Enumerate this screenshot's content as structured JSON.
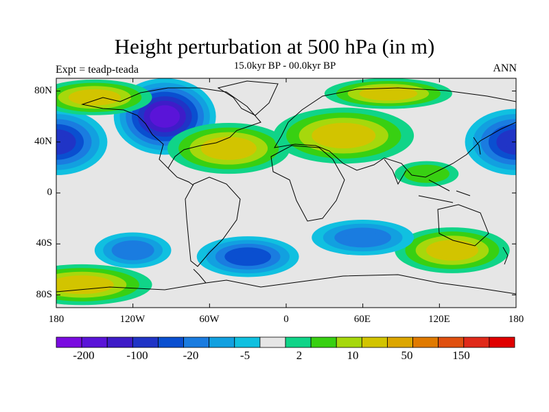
{
  "title": "Height perturbation at 500 hPa (in m)",
  "subtitle": "15.0kyr BP - 00.0kyr BP",
  "left_string": "Expt = teadp-teada",
  "right_string": "ANN",
  "lat_labels": [
    "80N",
    "40N",
    "0",
    "40S",
    "80S"
  ],
  "lon_labels": [
    "180",
    "120W",
    "60W",
    "0",
    "60E",
    "120E",
    "180"
  ],
  "colorbar": {
    "colors": [
      "#7a0be0",
      "#5a14d8",
      "#3e1cc8",
      "#2034c6",
      "#0a4fd0",
      "#1a7ce0",
      "#12a0e0",
      "#10c0e0",
      "#e6e6e6",
      "#10d488",
      "#38d012",
      "#a6d80c",
      "#d2c400",
      "#dca600",
      "#e07a00",
      "#e05010",
      "#e02a1a",
      "#e00000"
    ],
    "labels": [
      "-200",
      "-100",
      "-20",
      "-5",
      "2",
      "10",
      "50",
      "150"
    ]
  },
  "chart_data": {
    "type": "heatmap",
    "title": "Height perturbation at 500 hPa (in m)",
    "subtitle": "15.0kyr BP - 00.0kyr BP",
    "experiment": "Expt = teadp-teada",
    "period": "ANN",
    "x_range": [
      -180,
      180
    ],
    "y_range": [
      -90,
      90
    ],
    "blobs": [
      {
        "region": "North Pacific low",
        "lon": -180,
        "lat": 40,
        "value": -50
      },
      {
        "region": "North Pacific low (east)",
        "lon": 180,
        "lat": 40,
        "value": -50
      },
      {
        "region": "Laurentide low",
        "lon": -95,
        "lat": 60,
        "value": -150
      },
      {
        "region": "North Atlantic high",
        "lon": -45,
        "lat": 35,
        "value": 40
      },
      {
        "region": "Eurasia high",
        "lon": 45,
        "lat": 45,
        "value": 40
      },
      {
        "region": "Arctic high",
        "lon": -150,
        "lat": 75,
        "value": 45
      },
      {
        "region": "Siberia high",
        "lon": 80,
        "lat": 78,
        "value": 30
      },
      {
        "region": "South Atlantic low",
        "lon": -30,
        "lat": -50,
        "value": -35
      },
      {
        "region": "Southern Indian Ocean high",
        "lon": 130,
        "lat": -45,
        "value": 40
      },
      {
        "region": "Antarctic Pacific high",
        "lon": -160,
        "lat": -72,
        "value": 40
      },
      {
        "region": "South Pacific low",
        "lon": -120,
        "lat": -45,
        "value": -15
      },
      {
        "region": "Indian Ocean low",
        "lon": 60,
        "lat": -35,
        "value": -15
      },
      {
        "region": "West Pacific warm pool",
        "lon": 110,
        "lat": 15,
        "value": 8
      }
    ]
  }
}
